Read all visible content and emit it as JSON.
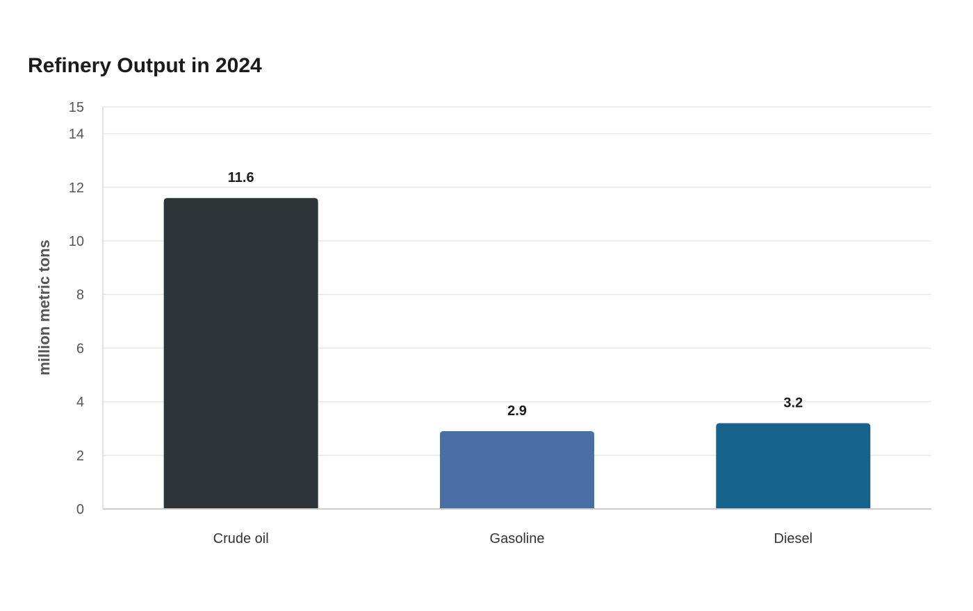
{
  "chart_data": {
    "type": "bar",
    "title": "Refinery Output in 2024",
    "xlabel": "",
    "ylabel": "million metric tons",
    "categories": [
      "Crude oil",
      "Gasoline",
      "Diesel"
    ],
    "values": [
      11.6,
      2.9,
      3.2
    ],
    "value_labels": [
      "11.6",
      "2.9",
      "3.2"
    ],
    "colors": [
      "#2e3538",
      "#4a6fa5",
      "#17628b"
    ],
    "ylim": [
      0,
      15
    ],
    "yticks": [
      0,
      2,
      4,
      6,
      8,
      10,
      12,
      14,
      15
    ],
    "grid": true,
    "legend": "none"
  }
}
